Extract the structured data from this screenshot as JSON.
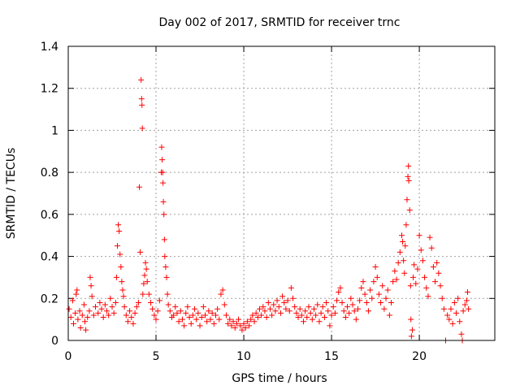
{
  "chart_data": {
    "type": "scatter",
    "title": "Day 002 of 2017, SRMTID for receiver trnc",
    "xlabel": "GPS time / hours",
    "ylabel": "SRMTID / TECUs",
    "xlim": [
      0,
      24.3
    ],
    "ylim": [
      0,
      1.4
    ],
    "xticks": [
      0,
      5,
      10,
      15,
      20
    ],
    "yticks": [
      0,
      0.2,
      0.4,
      0.6,
      0.8,
      1,
      1.2,
      1.4
    ],
    "ytick_labels": [
      "0",
      "0.2",
      "0.4",
      "0.6",
      "0.8",
      "1",
      "1.2",
      "1.4"
    ],
    "grid": true,
    "marker": "plus",
    "series": [
      {
        "name": "SRMTID",
        "color": "#ff0000",
        "points": [
          [
            0.05,
            0.15
          ],
          [
            0.15,
            0.11
          ],
          [
            0.25,
            0.19
          ],
          [
            0.3,
            0.08
          ],
          [
            0.4,
            0.13
          ],
          [
            0.45,
            0.22
          ],
          [
            0.5,
            0.24
          ],
          [
            0.55,
            0.1
          ],
          [
            0.65,
            0.14
          ],
          [
            0.7,
            0.06
          ],
          [
            0.8,
            0.12
          ],
          [
            0.9,
            0.17
          ],
          [
            0.95,
            0.09
          ],
          [
            1.0,
            0.05
          ],
          [
            1.1,
            0.11
          ],
          [
            1.2,
            0.14
          ],
          [
            1.25,
            0.3
          ],
          [
            1.3,
            0.26
          ],
          [
            1.35,
            0.21
          ],
          [
            1.45,
            0.12
          ],
          [
            1.55,
            0.16
          ],
          [
            1.7,
            0.13
          ],
          [
            1.8,
            0.18
          ],
          [
            1.9,
            0.15
          ],
          [
            2.0,
            0.11
          ],
          [
            2.1,
            0.17
          ],
          [
            2.2,
            0.14
          ],
          [
            2.3,
            0.12
          ],
          [
            2.4,
            0.2
          ],
          [
            2.5,
            0.16
          ],
          [
            2.6,
            0.13
          ],
          [
            2.7,
            0.18
          ],
          [
            2.75,
            0.3
          ],
          [
            2.8,
            0.45
          ],
          [
            2.85,
            0.55
          ],
          [
            2.9,
            0.52
          ],
          [
            2.95,
            0.41
          ],
          [
            3.0,
            0.35
          ],
          [
            3.05,
            0.28
          ],
          [
            3.1,
            0.24
          ],
          [
            3.15,
            0.21
          ],
          [
            3.2,
            0.16
          ],
          [
            3.3,
            0.12
          ],
          [
            3.4,
            0.09
          ],
          [
            3.5,
            0.14
          ],
          [
            3.6,
            0.11
          ],
          [
            3.7,
            0.08
          ],
          [
            3.8,
            0.13
          ],
          [
            3.9,
            0.16
          ],
          [
            4.0,
            0.18
          ],
          [
            4.05,
            0.73
          ],
          [
            4.1,
            0.42
          ],
          [
            4.15,
            1.24
          ],
          [
            4.18,
            1.15
          ],
          [
            4.2,
            1.12
          ],
          [
            4.22,
            1.01
          ],
          [
            4.25,
            0.22
          ],
          [
            4.3,
            0.27
          ],
          [
            4.35,
            0.31
          ],
          [
            4.4,
            0.37
          ],
          [
            4.45,
            0.34
          ],
          [
            4.5,
            0.28
          ],
          [
            4.6,
            0.22
          ],
          [
            4.7,
            0.18
          ],
          [
            4.8,
            0.15
          ],
          [
            4.9,
            0.12
          ],
          [
            5.0,
            0.1
          ],
          [
            5.1,
            0.14
          ],
          [
            5.2,
            0.19
          ],
          [
            5.3,
            0.8
          ],
          [
            5.32,
            0.92
          ],
          [
            5.35,
            0.86
          ],
          [
            5.38,
            0.8
          ],
          [
            5.4,
            0.75
          ],
          [
            5.42,
            0.66
          ],
          [
            5.45,
            0.6
          ],
          [
            5.48,
            0.48
          ],
          [
            5.5,
            0.4
          ],
          [
            5.55,
            0.35
          ],
          [
            5.6,
            0.3
          ],
          [
            5.65,
            0.22
          ],
          [
            5.7,
            0.17
          ],
          [
            5.8,
            0.14
          ],
          [
            5.9,
            0.11
          ],
          [
            6.0,
            0.12
          ],
          [
            6.1,
            0.16
          ],
          [
            6.2,
            0.13
          ],
          [
            6.3,
            0.09
          ],
          [
            6.4,
            0.14
          ],
          [
            6.5,
            0.1
          ],
          [
            6.6,
            0.07
          ],
          [
            6.7,
            0.13
          ],
          [
            6.8,
            0.16
          ],
          [
            6.9,
            0.11
          ],
          [
            7.0,
            0.08
          ],
          [
            7.1,
            0.12
          ],
          [
            7.2,
            0.15
          ],
          [
            7.3,
            0.1
          ],
          [
            7.4,
            0.13
          ],
          [
            7.5,
            0.07
          ],
          [
            7.6,
            0.11
          ],
          [
            7.7,
            0.16
          ],
          [
            7.8,
            0.12
          ],
          [
            7.9,
            0.09
          ],
          [
            8.0,
            0.14
          ],
          [
            8.1,
            0.1
          ],
          [
            8.2,
            0.13
          ],
          [
            8.3,
            0.08
          ],
          [
            8.4,
            0.12
          ],
          [
            8.5,
            0.15
          ],
          [
            8.6,
            0.1
          ],
          [
            8.7,
            0.22
          ],
          [
            8.8,
            0.24
          ],
          [
            8.9,
            0.17
          ],
          [
            9.0,
            0.12
          ],
          [
            9.1,
            0.08
          ],
          [
            9.2,
            0.1
          ],
          [
            9.3,
            0.07
          ],
          [
            9.4,
            0.09
          ],
          [
            9.5,
            0.06
          ],
          [
            9.6,
            0.08
          ],
          [
            9.7,
            0.1
          ],
          [
            9.8,
            0.07
          ],
          [
            9.9,
            0.05
          ],
          [
            10.0,
            0.08
          ],
          [
            10.1,
            0.06
          ],
          [
            10.2,
            0.09
          ],
          [
            10.3,
            0.07
          ],
          [
            10.4,
            0.1
          ],
          [
            10.5,
            0.12
          ],
          [
            10.6,
            0.09
          ],
          [
            10.7,
            0.13
          ],
          [
            10.8,
            0.11
          ],
          [
            10.9,
            0.15
          ],
          [
            11.0,
            0.12
          ],
          [
            11.1,
            0.16
          ],
          [
            11.2,
            0.14
          ],
          [
            11.3,
            0.11
          ],
          [
            11.4,
            0.18
          ],
          [
            11.5,
            0.15
          ],
          [
            11.6,
            0.12
          ],
          [
            11.7,
            0.17
          ],
          [
            11.8,
            0.14
          ],
          [
            11.9,
            0.19
          ],
          [
            12.0,
            0.16
          ],
          [
            12.1,
            0.13
          ],
          [
            12.2,
            0.21
          ],
          [
            12.3,
            0.18
          ],
          [
            12.4,
            0.15
          ],
          [
            12.5,
            0.19
          ],
          [
            12.6,
            0.14
          ],
          [
            12.7,
            0.25
          ],
          [
            12.8,
            0.2
          ],
          [
            12.9,
            0.16
          ],
          [
            13.0,
            0.13
          ],
          [
            13.1,
            0.11
          ],
          [
            13.2,
            0.15
          ],
          [
            13.3,
            0.12
          ],
          [
            13.4,
            0.09
          ],
          [
            13.5,
            0.14
          ],
          [
            13.6,
            0.11
          ],
          [
            13.7,
            0.16
          ],
          [
            13.8,
            0.13
          ],
          [
            13.9,
            0.1
          ],
          [
            14.0,
            0.15
          ],
          [
            14.1,
            0.12
          ],
          [
            14.2,
            0.17
          ],
          [
            14.3,
            0.09
          ],
          [
            14.4,
            0.13
          ],
          [
            14.5,
            0.16
          ],
          [
            14.6,
            0.11
          ],
          [
            14.7,
            0.18
          ],
          [
            14.8,
            0.14
          ],
          [
            14.9,
            0.07
          ],
          [
            15.0,
            0.12
          ],
          [
            15.1,
            0.16
          ],
          [
            15.2,
            0.13
          ],
          [
            15.3,
            0.19
          ],
          [
            15.4,
            0.23
          ],
          [
            15.5,
            0.25
          ],
          [
            15.6,
            0.18
          ],
          [
            15.7,
            0.14
          ],
          [
            15.8,
            0.11
          ],
          [
            15.9,
            0.16
          ],
          [
            16.0,
            0.13
          ],
          [
            16.1,
            0.2
          ],
          [
            16.2,
            0.17
          ],
          [
            16.3,
            0.14
          ],
          [
            16.4,
            0.1
          ],
          [
            16.5,
            0.15
          ],
          [
            16.6,
            0.19
          ],
          [
            16.7,
            0.25
          ],
          [
            16.8,
            0.28
          ],
          [
            16.9,
            0.22
          ],
          [
            17.0,
            0.18
          ],
          [
            17.1,
            0.14
          ],
          [
            17.2,
            0.24
          ],
          [
            17.3,
            0.2
          ],
          [
            17.4,
            0.28
          ],
          [
            17.5,
            0.35
          ],
          [
            17.6,
            0.3
          ],
          [
            17.7,
            0.22
          ],
          [
            17.8,
            0.18
          ],
          [
            17.9,
            0.26
          ],
          [
            18.0,
            0.15
          ],
          [
            18.1,
            0.2
          ],
          [
            18.2,
            0.24
          ],
          [
            18.3,
            0.12
          ],
          [
            18.4,
            0.18
          ],
          [
            18.5,
            0.28
          ],
          [
            18.6,
            0.33
          ],
          [
            18.7,
            0.29
          ],
          [
            18.8,
            0.37
          ],
          [
            18.9,
            0.42
          ],
          [
            19.0,
            0.5
          ],
          [
            19.05,
            0.47
          ],
          [
            19.1,
            0.38
          ],
          [
            19.15,
            0.32
          ],
          [
            19.2,
            0.45
          ],
          [
            19.25,
            0.55
          ],
          [
            19.3,
            0.67
          ],
          [
            19.35,
            0.78
          ],
          [
            19.38,
            0.83
          ],
          [
            19.4,
            0.76
          ],
          [
            19.45,
            0.62
          ],
          [
            19.5,
            0.26
          ],
          [
            19.52,
            0.1
          ],
          [
            19.55,
            0.02
          ],
          [
            19.6,
            0.05
          ],
          [
            19.65,
            0.3
          ],
          [
            19.7,
            0.36
          ],
          [
            19.8,
            0.27
          ],
          [
            19.9,
            0.34
          ],
          [
            20.0,
            0.5
          ],
          [
            20.1,
            0.43
          ],
          [
            20.2,
            0.38
          ],
          [
            20.3,
            0.3
          ],
          [
            20.4,
            0.25
          ],
          [
            20.5,
            0.21
          ],
          [
            20.6,
            0.49
          ],
          [
            20.7,
            0.44
          ],
          [
            20.8,
            0.35
          ],
          [
            20.9,
            0.28
          ],
          [
            21.0,
            0.37
          ],
          [
            21.1,
            0.32
          ],
          [
            21.2,
            0.26
          ],
          [
            21.3,
            0.2
          ],
          [
            21.4,
            0.15
          ],
          [
            21.5,
            0.0
          ],
          [
            21.6,
            0.12
          ],
          [
            21.7,
            0.1
          ],
          [
            21.8,
            0.15
          ],
          [
            21.9,
            0.08
          ],
          [
            22.0,
            0.18
          ],
          [
            22.1,
            0.13
          ],
          [
            22.2,
            0.2
          ],
          [
            22.3,
            0.09
          ],
          [
            22.4,
            0.03
          ],
          [
            22.45,
            0.0
          ],
          [
            22.5,
            0.14
          ],
          [
            22.6,
            0.17
          ],
          [
            22.7,
            0.19
          ],
          [
            22.75,
            0.23
          ],
          [
            22.8,
            0.15
          ]
        ]
      }
    ]
  }
}
